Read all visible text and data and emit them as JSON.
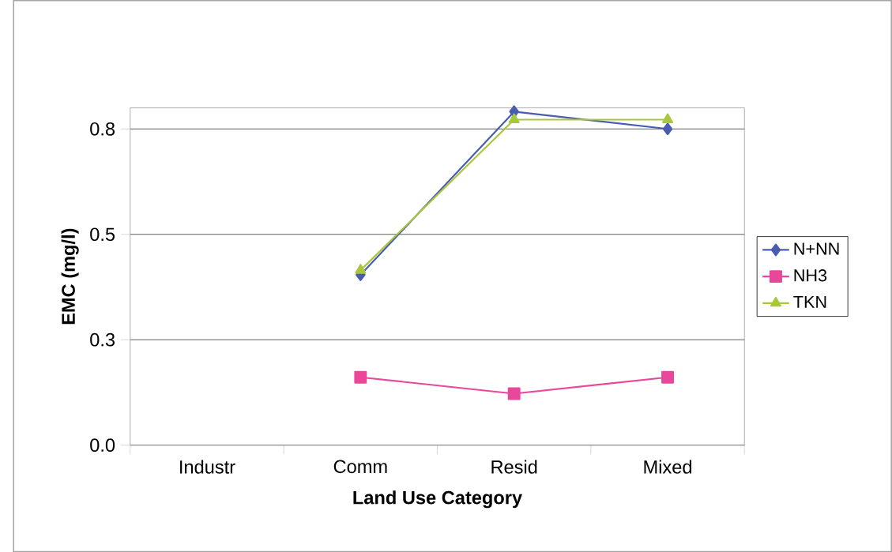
{
  "chart_data": {
    "type": "line",
    "xlabel": "Land Use Category",
    "ylabel": "EMC (mg/l)",
    "categories": [
      "Industr",
      "Comm",
      "Resid",
      "Mixed"
    ],
    "series": [
      {
        "name": "N+NN",
        "color": "#4a5cb0",
        "marker": "diamond",
        "values": [
          null,
          0.404,
          0.791,
          0.75
        ]
      },
      {
        "name": "NH3",
        "color": "#e8479a",
        "marker": "square",
        "values": [
          null,
          0.161,
          0.122,
          0.161
        ]
      },
      {
        "name": "TKN",
        "color": "#a8c83c",
        "marker": "triangle",
        "values": [
          null,
          0.415,
          0.772,
          0.772
        ]
      }
    ],
    "ylim": [
      0,
      0.8
    ],
    "yticks": [
      {
        "value": 0,
        "label": "0.0"
      },
      {
        "value": 0.25,
        "label": "0.3"
      },
      {
        "value": 0.5,
        "label": "0.5"
      },
      {
        "value": 0.75,
        "label": "0.8"
      }
    ],
    "grid": "y",
    "legend": "right"
  }
}
